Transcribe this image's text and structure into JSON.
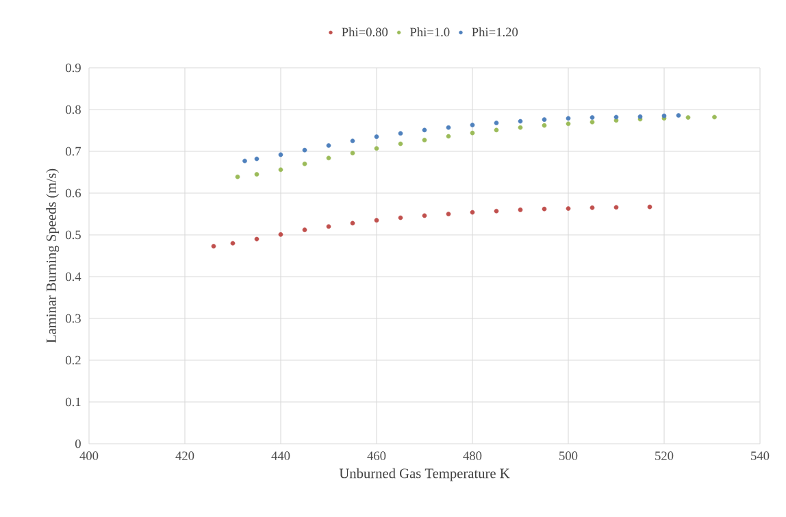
{
  "chart_data": {
    "type": "scatter",
    "xlabel": "Unburned Gas Temperature K",
    "ylabel": "Laminar Burning Speeds (m/s)",
    "xlim": [
      400,
      540
    ],
    "ylim": [
      0,
      0.9
    ],
    "xticks": [
      400,
      420,
      440,
      460,
      480,
      500,
      520,
      540
    ],
    "yticks": [
      0,
      0.1,
      0.2,
      0.3,
      0.4,
      0.5,
      0.6,
      0.7,
      0.8,
      0.9
    ],
    "grid": true,
    "legend": "top",
    "marker": "circle",
    "series": [
      {
        "name": "Phi=0.80",
        "color": "#c0504d",
        "x": [
          426,
          430,
          435,
          440,
          445,
          450,
          455,
          460,
          465,
          470,
          475,
          480,
          485,
          490,
          495,
          500,
          505,
          510,
          517
        ],
        "values": [
          0.473,
          0.48,
          0.49,
          0.501,
          0.512,
          0.52,
          0.528,
          0.535,
          0.541,
          0.546,
          0.55,
          0.554,
          0.557,
          0.56,
          0.562,
          0.563,
          0.565,
          0.566,
          0.567
        ]
      },
      {
        "name": "Phi=1.0",
        "color": "#9bbb59",
        "x": [
          431,
          435,
          440,
          445,
          450,
          455,
          460,
          465,
          470,
          475,
          480,
          485,
          490,
          495,
          500,
          505,
          510,
          515,
          520,
          525,
          530.5
        ],
        "values": [
          0.639,
          0.645,
          0.656,
          0.67,
          0.684,
          0.696,
          0.707,
          0.718,
          0.727,
          0.736,
          0.744,
          0.751,
          0.757,
          0.762,
          0.766,
          0.77,
          0.774,
          0.777,
          0.779,
          0.781,
          0.782
        ]
      },
      {
        "name": "Phi=1.20",
        "color": "#4f81bd",
        "x": [
          432.5,
          435,
          440,
          445,
          450,
          455,
          460,
          465,
          470,
          475,
          480,
          485,
          490,
          495,
          500,
          505,
          510,
          515,
          520,
          523
        ],
        "values": [
          0.677,
          0.682,
          0.692,
          0.703,
          0.714,
          0.725,
          0.735,
          0.743,
          0.751,
          0.757,
          0.763,
          0.768,
          0.772,
          0.776,
          0.779,
          0.781,
          0.782,
          0.783,
          0.785,
          0.786
        ]
      }
    ]
  }
}
